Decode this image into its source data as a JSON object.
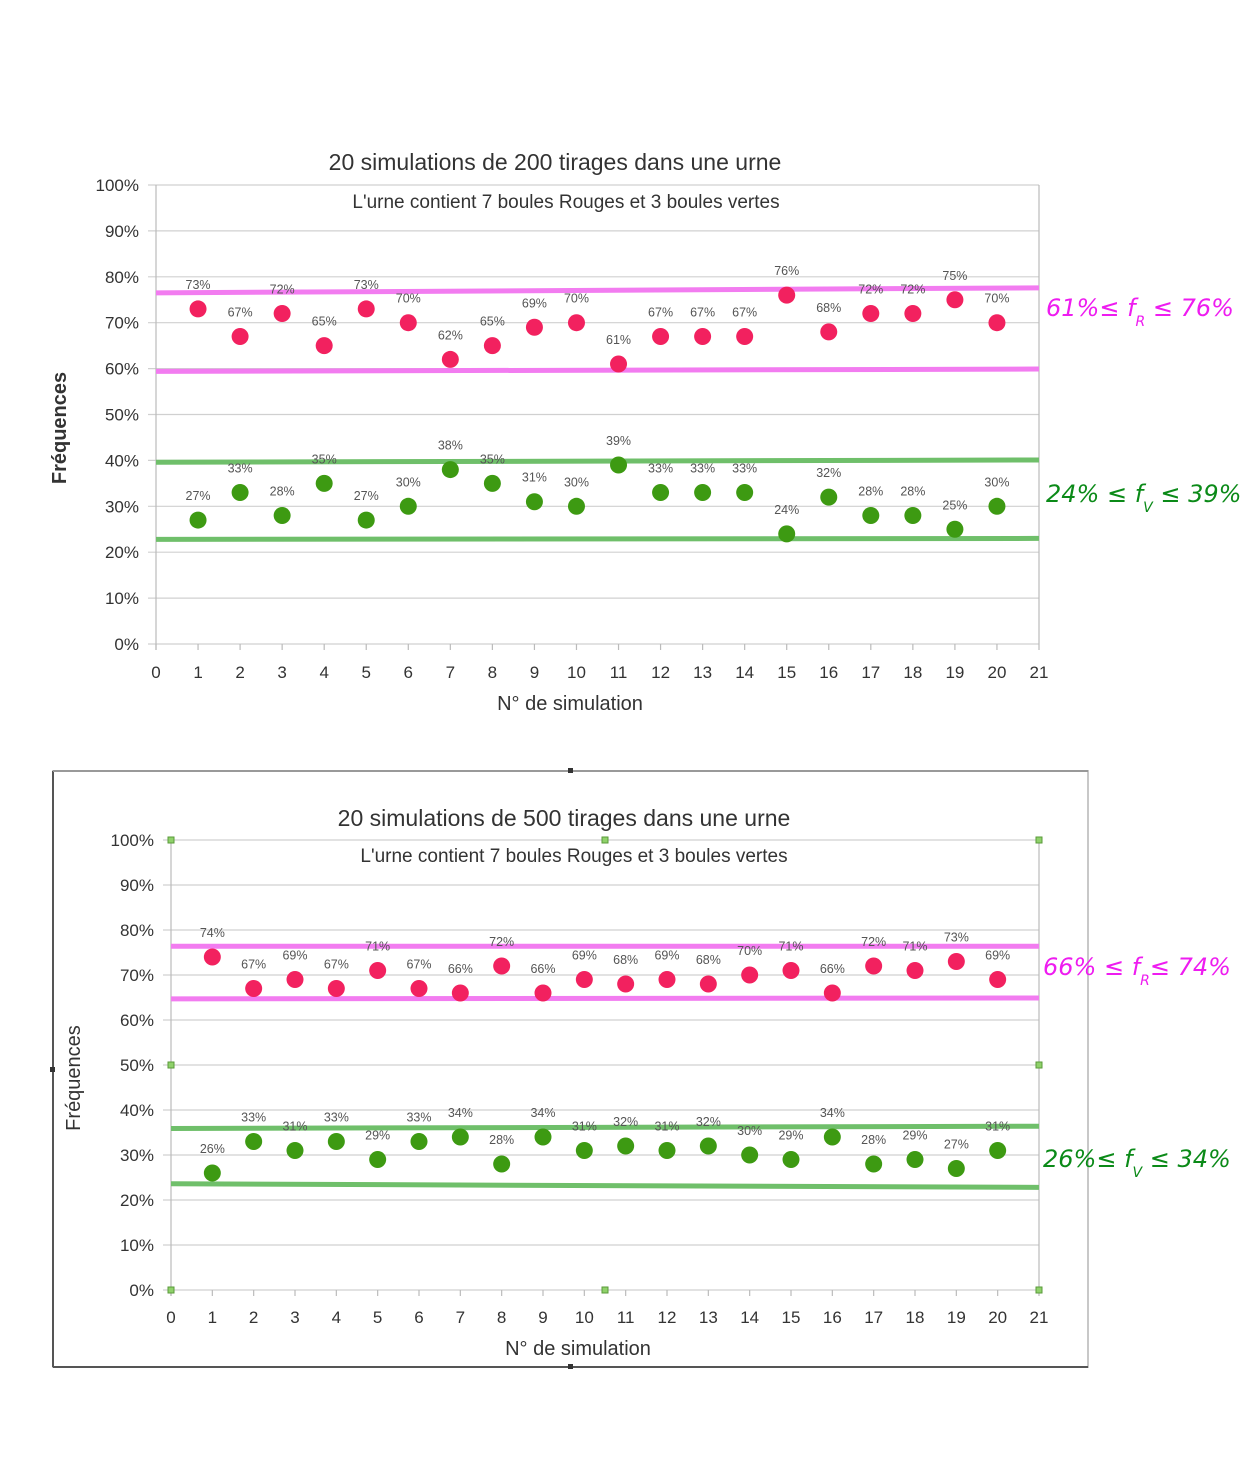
{
  "colors": {
    "red_point": "#f2215f",
    "green_point": "#3d9a12",
    "pink_band": "#f27cf0",
    "green_band": "#6fbf6a",
    "pink_note": "#ee1cf0",
    "green_note": "#0b8a18",
    "grid": "#d0d0d0",
    "axis_text": "#333333",
    "label_text": "#555555"
  },
  "chart_data": [
    {
      "type": "scatter",
      "title": "20 simulations de 200 tirages dans une urne",
      "subtitle": "L'urne contient 7 boules Rouges et 3 boules vertes",
      "xlabel": "N° de simulation",
      "ylabel": "Fréquences",
      "xlim": [
        0,
        21
      ],
      "ylim": [
        0,
        100
      ],
      "x_ticks": [
        "0",
        "1",
        "2",
        "3",
        "4",
        "5",
        "6",
        "7",
        "8",
        "9",
        "10",
        "11",
        "12",
        "13",
        "14",
        "15",
        "16",
        "17",
        "18",
        "19",
        "20",
        "21"
      ],
      "y_ticks": [
        "0%",
        "10%",
        "20%",
        "30%",
        "40%",
        "50%",
        "60%",
        "70%",
        "80%",
        "90%",
        "100%"
      ],
      "grid": true,
      "series": [
        {
          "color_key": "red_point",
          "x": [
            1,
            2,
            3,
            4,
            5,
            6,
            7,
            8,
            9,
            10,
            11,
            12,
            13,
            14,
            15,
            16,
            17,
            18,
            19,
            20
          ],
          "values": [
            73,
            67,
            72,
            65,
            73,
            70,
            62,
            65,
            69,
            70,
            61,
            67,
            67,
            67,
            76,
            68,
            72,
            72,
            75,
            70
          ],
          "labels": [
            "73%",
            "67%",
            "72%",
            "65%",
            "73%",
            "70%",
            "62%",
            "65%",
            "69%",
            "70%",
            "61%",
            "67%",
            "67%",
            "67%",
            "76%",
            "68%",
            "72%",
            "72%",
            "75%",
            "70%"
          ]
        },
        {
          "color_key": "green_point",
          "x": [
            1,
            2,
            3,
            4,
            5,
            6,
            7,
            8,
            9,
            10,
            11,
            12,
            13,
            14,
            15,
            16,
            17,
            18,
            19,
            20
          ],
          "values": [
            27,
            33,
            28,
            35,
            27,
            30,
            38,
            35,
            31,
            30,
            39,
            33,
            33,
            33,
            24,
            32,
            28,
            28,
            25,
            30
          ],
          "labels": [
            "27%",
            "33%",
            "28%",
            "35%",
            "27%",
            "30%",
            "38%",
            "35%",
            "31%",
            "30%",
            "39%",
            "33%",
            "33%",
            "33%",
            "24%",
            "32%",
            "28%",
            "28%",
            "25%",
            "30%"
          ]
        }
      ],
      "bands": [
        {
          "color_key": "pink_band",
          "y": [
            76.5,
            77.6
          ]
        },
        {
          "color_key": "pink_band",
          "y": [
            59.4,
            59.9
          ]
        },
        {
          "color_key": "green_band",
          "y": [
            39.6,
            40.1
          ]
        },
        {
          "color_key": "green_band",
          "y": [
            22.8,
            23.0
          ]
        }
      ],
      "annotations": [
        {
          "text": "61%≤ f",
          "sub": "R",
          "after": " ≤ 76%",
          "color_key": "pink_note"
        },
        {
          "text": "24% ≤ f",
          "sub": "V",
          "after": " ≤ 39%",
          "color_key": "green_note"
        }
      ]
    },
    {
      "type": "scatter",
      "title": "20 simulations de 500 tirages dans une urne",
      "subtitle": "L'urne contient 7 boules Rouges et 3 boules vertes",
      "xlabel": "N° de simulation",
      "ylabel": "Fréquences",
      "xlim": [
        0,
        21
      ],
      "ylim": [
        0,
        100
      ],
      "x_ticks": [
        "0",
        "1",
        "2",
        "3",
        "4",
        "5",
        "6",
        "7",
        "8",
        "9",
        "10",
        "11",
        "12",
        "13",
        "14",
        "15",
        "16",
        "17",
        "18",
        "19",
        "20",
        "21"
      ],
      "y_ticks": [
        "0%",
        "10%",
        "20%",
        "30%",
        "40%",
        "50%",
        "60%",
        "70%",
        "80%",
        "90%",
        "100%"
      ],
      "grid": true,
      "series": [
        {
          "color_key": "red_point",
          "x": [
            1,
            2,
            3,
            4,
            5,
            6,
            7,
            8,
            9,
            10,
            11,
            12,
            13,
            14,
            15,
            16,
            17,
            18,
            19,
            20
          ],
          "values": [
            74,
            67,
            69,
            67,
            71,
            67,
            66,
            72,
            66,
            69,
            68,
            69,
            68,
            70,
            71,
            66,
            72,
            71,
            73,
            69
          ],
          "labels": [
            "74%",
            "67%",
            "69%",
            "67%",
            "71%",
            "67%",
            "66%",
            "72%",
            "66%",
            "69%",
            "68%",
            "69%",
            "68%",
            "70%",
            "71%",
            "66%",
            "72%",
            "71%",
            "73%",
            "69%"
          ]
        },
        {
          "color_key": "green_point",
          "x": [
            1,
            2,
            3,
            4,
            5,
            6,
            7,
            8,
            9,
            10,
            11,
            12,
            13,
            14,
            15,
            16,
            17,
            18,
            19,
            20
          ],
          "values": [
            26,
            33,
            31,
            33,
            29,
            33,
            34,
            28,
            34,
            31,
            32,
            31,
            32,
            30,
            29,
            34,
            28,
            29,
            27,
            31
          ],
          "labels": [
            "26%",
            "33%",
            "31%",
            "33%",
            "29%",
            "33%",
            "34%",
            "28%",
            "34%",
            "31%",
            "32%",
            "31%",
            "32%",
            "30%",
            "29%",
            "34%",
            "28%",
            "29%",
            "27%",
            "31%"
          ]
        }
      ],
      "bands": [
        {
          "color_key": "pink_band",
          "y": [
            76.4,
            76.4
          ]
        },
        {
          "color_key": "pink_band",
          "y": [
            64.7,
            64.9
          ]
        },
        {
          "color_key": "green_band",
          "y": [
            35.9,
            36.4
          ]
        },
        {
          "color_key": "green_band",
          "y": [
            23.6,
            22.8
          ]
        }
      ],
      "annotations": [
        {
          "text": "66% ≤ f",
          "sub": "R",
          "after": "≤ 74%",
          "color_key": "pink_note"
        },
        {
          "text": "26%≤ f",
          "sub": "V",
          "after": " ≤ 34%",
          "color_key": "green_note"
        }
      ]
    }
  ]
}
